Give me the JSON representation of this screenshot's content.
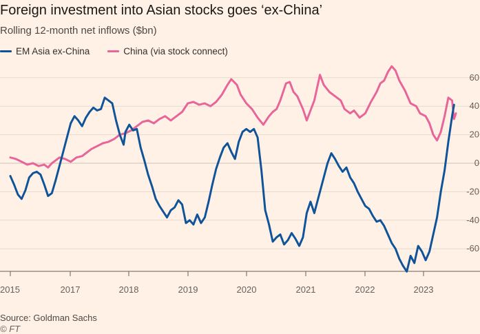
{
  "header": {
    "title": "Foreign investment into Asian stocks goes ‘ex-China’",
    "subtitle": "Rolling 12-month net inflows ($bn)"
  },
  "legend": [
    {
      "label": "EM Asia ex-China",
      "color": "#0f5499"
    },
    {
      "label": "China (via stock connect)",
      "color": "#e8659a"
    }
  ],
  "footer": {
    "source": "Source: Goldman Sachs",
    "credit": "© FT"
  },
  "chart_data": {
    "type": "line",
    "title": "Foreign investment into Asian stocks goes ‘ex-China’",
    "subtitle": "Rolling 12-month net inflows ($bn)",
    "xlabel": "",
    "ylabel": "",
    "xlim": [
      2015.0,
      2023.85
    ],
    "ylim": [
      -78,
      66
    ],
    "yticks": [
      60,
      40,
      20,
      0,
      -20,
      -40,
      -60
    ],
    "ytick_labels": [
      "60",
      "40",
      "20",
      "0",
      "-20",
      "-40",
      "-60"
    ],
    "xticks": [
      2015,
      2017,
      2018,
      2019,
      2020,
      2021,
      2022,
      2023
    ],
    "xtick_labels": [
      "2015",
      "2017",
      "2018",
      "2019",
      "2020",
      "2021",
      "2022",
      "2023"
    ],
    "grid": true,
    "legend_position": "top-left",
    "series": [
      {
        "name": "EM Asia ex-China",
        "color": "#0f5499",
        "points": [
          [
            2015.0,
            -9
          ],
          [
            2015.1,
            -15
          ],
          [
            2015.2,
            -22
          ],
          [
            2015.3,
            -25
          ],
          [
            2015.4,
            -19
          ],
          [
            2015.5,
            -10
          ],
          [
            2015.6,
            -7
          ],
          [
            2015.7,
            -6
          ],
          [
            2015.8,
            -8
          ],
          [
            2015.9,
            -15
          ],
          [
            2016.0,
            -23
          ],
          [
            2016.1,
            -21
          ],
          [
            2016.2,
            -12
          ],
          [
            2016.3,
            -2
          ],
          [
            2016.4,
            8
          ],
          [
            2016.5,
            18
          ],
          [
            2016.6,
            28
          ],
          [
            2016.7,
            33
          ],
          [
            2016.8,
            30
          ],
          [
            2016.9,
            26
          ],
          [
            2017.0,
            32
          ],
          [
            2017.1,
            36
          ],
          [
            2017.2,
            39
          ],
          [
            2017.3,
            37
          ],
          [
            2017.4,
            38
          ],
          [
            2017.5,
            46
          ],
          [
            2017.6,
            44
          ],
          [
            2017.7,
            42
          ],
          [
            2017.8,
            30
          ],
          [
            2017.9,
            20
          ],
          [
            2018.0,
            13
          ],
          [
            2018.05,
            22
          ],
          [
            2018.15,
            27
          ],
          [
            2018.25,
            23
          ],
          [
            2018.35,
            24
          ],
          [
            2018.45,
            11
          ],
          [
            2018.55,
            2
          ],
          [
            2018.65,
            -8
          ],
          [
            2018.75,
            -16
          ],
          [
            2018.85,
            -25
          ],
          [
            2018.95,
            -30
          ],
          [
            2019.05,
            -34
          ],
          [
            2019.15,
            -38
          ],
          [
            2019.25,
            -33
          ],
          [
            2019.35,
            -31
          ],
          [
            2019.45,
            -26
          ],
          [
            2019.55,
            -29
          ],
          [
            2019.65,
            -42
          ],
          [
            2019.75,
            -40
          ],
          [
            2019.85,
            -43
          ],
          [
            2019.95,
            -36
          ],
          [
            2020.05,
            -42
          ],
          [
            2020.15,
            -38
          ],
          [
            2020.25,
            -27
          ],
          [
            2020.35,
            -15
          ],
          [
            2020.45,
            -4
          ],
          [
            2020.55,
            4
          ],
          [
            2020.65,
            11
          ],
          [
            2020.75,
            14
          ],
          [
            2020.85,
            8
          ],
          [
            2020.95,
            3
          ],
          [
            2021.05,
            15
          ],
          [
            2021.15,
            22
          ],
          [
            2021.25,
            24
          ],
          [
            2021.35,
            22
          ],
          [
            2021.45,
            24
          ],
          [
            2021.55,
            18
          ],
          [
            2021.65,
            -5
          ],
          [
            2021.75,
            -33
          ],
          [
            2021.85,
            -43
          ],
          [
            2021.95,
            -55
          ],
          [
            2022.05,
            -52
          ],
          [
            2022.15,
            -50
          ],
          [
            2022.25,
            -57
          ],
          [
            2022.35,
            -54
          ],
          [
            2022.45,
            -49
          ],
          [
            2022.55,
            -53
          ],
          [
            2022.65,
            -58
          ],
          [
            2022.75,
            -52
          ],
          [
            2022.85,
            -35
          ],
          [
            2022.95,
            -27
          ],
          [
            2023.05,
            -35
          ],
          [
            2023.1,
            -30
          ],
          [
            2023.2,
            -20
          ],
          [
            2023.3,
            -10
          ],
          [
            2023.4,
            0
          ],
          [
            2023.5,
            7
          ],
          [
            2023.6,
            3
          ],
          [
            2023.7,
            -2
          ],
          [
            2023.8,
            -6
          ],
          [
            2023.9,
            -3
          ],
          [
            2024.0,
            -10
          ],
          [
            2024.1,
            -14
          ],
          [
            2024.2,
            -20
          ],
          [
            2024.3,
            -25
          ],
          [
            2024.4,
            -30
          ],
          [
            2024.5,
            -32
          ],
          [
            2024.6,
            -37
          ],
          [
            2024.7,
            -41
          ],
          [
            2024.8,
            -40
          ],
          [
            2024.9,
            -44
          ],
          [
            2025.0,
            -50
          ],
          [
            2025.1,
            -56
          ],
          [
            2025.2,
            -60
          ],
          [
            2025.3,
            -67
          ],
          [
            2025.4,
            -72
          ],
          [
            2025.5,
            -76
          ],
          [
            2025.6,
            -65
          ],
          [
            2025.7,
            -70
          ],
          [
            2025.8,
            -58
          ],
          [
            2025.9,
            -62
          ],
          [
            2026.0,
            -68
          ],
          [
            2026.1,
            -62
          ],
          [
            2026.2,
            -50
          ],
          [
            2026.3,
            -38
          ],
          [
            2026.4,
            -20
          ],
          [
            2026.5,
            -5
          ],
          [
            2026.6,
            15
          ],
          [
            2026.7,
            33
          ],
          [
            2026.75,
            41
          ]
        ]
      },
      {
        "name": "China (via stock connect)",
        "color": "#e8659a",
        "points": [
          [
            2015.0,
            4
          ],
          [
            2015.15,
            3
          ],
          [
            2015.3,
            1
          ],
          [
            2015.45,
            -1
          ],
          [
            2015.6,
            0
          ],
          [
            2015.75,
            -2
          ],
          [
            2015.9,
            -1
          ],
          [
            2016.0,
            -3
          ],
          [
            2016.1,
            0
          ],
          [
            2016.2,
            2
          ],
          [
            2016.3,
            4
          ],
          [
            2016.45,
            3
          ],
          [
            2016.6,
            1
          ],
          [
            2016.75,
            4
          ],
          [
            2016.9,
            5
          ],
          [
            2017.0,
            7
          ],
          [
            2017.15,
            10
          ],
          [
            2017.3,
            12
          ],
          [
            2017.45,
            14
          ],
          [
            2017.6,
            15
          ],
          [
            2017.75,
            17
          ],
          [
            2017.9,
            20
          ],
          [
            2018.05,
            21
          ],
          [
            2018.2,
            23
          ],
          [
            2018.35,
            26
          ],
          [
            2018.5,
            29
          ],
          [
            2018.65,
            30
          ],
          [
            2018.8,
            28
          ],
          [
            2018.95,
            31
          ],
          [
            2019.1,
            33
          ],
          [
            2019.25,
            30
          ],
          [
            2019.4,
            33
          ],
          [
            2019.55,
            36
          ],
          [
            2019.7,
            42
          ],
          [
            2019.85,
            43
          ],
          [
            2020.0,
            41
          ],
          [
            2020.15,
            42
          ],
          [
            2020.3,
            40
          ],
          [
            2020.45,
            43
          ],
          [
            2020.6,
            48
          ],
          [
            2020.75,
            55
          ],
          [
            2020.85,
            59
          ],
          [
            2021.0,
            55
          ],
          [
            2021.1,
            48
          ],
          [
            2021.25,
            42
          ],
          [
            2021.4,
            38
          ],
          [
            2021.55,
            32
          ],
          [
            2021.7,
            27
          ],
          [
            2021.85,
            33
          ],
          [
            2021.95,
            36
          ],
          [
            2022.05,
            38
          ],
          [
            2022.15,
            44
          ],
          [
            2022.3,
            56
          ],
          [
            2022.4,
            57
          ],
          [
            2022.5,
            50
          ],
          [
            2022.6,
            47
          ],
          [
            2022.75,
            38
          ],
          [
            2022.85,
            30
          ],
          [
            2022.95,
            37
          ],
          [
            2023.05,
            44
          ],
          [
            2023.2,
            62
          ],
          [
            2023.3,
            55
          ],
          [
            2023.45,
            50
          ],
          [
            2023.6,
            47
          ],
          [
            2023.75,
            44
          ],
          [
            2023.85,
            38
          ],
          [
            2024.0,
            35
          ],
          [
            2024.1,
            37
          ],
          [
            2024.25,
            32
          ],
          [
            2024.4,
            35
          ],
          [
            2024.55,
            43
          ],
          [
            2024.7,
            50
          ],
          [
            2024.8,
            56
          ],
          [
            2024.9,
            58
          ],
          [
            2025.0,
            64
          ],
          [
            2025.1,
            68
          ],
          [
            2025.2,
            65
          ],
          [
            2025.3,
            58
          ],
          [
            2025.45,
            51
          ],
          [
            2025.6,
            42
          ],
          [
            2025.75,
            40
          ],
          [
            2025.85,
            35
          ],
          [
            2026.0,
            33
          ],
          [
            2026.1,
            28
          ],
          [
            2026.2,
            20
          ],
          [
            2026.3,
            16
          ],
          [
            2026.4,
            22
          ],
          [
            2026.5,
            33
          ],
          [
            2026.6,
            46
          ],
          [
            2026.7,
            44
          ],
          [
            2026.75,
            31
          ],
          [
            2026.8,
            35
          ]
        ]
      }
    ]
  }
}
